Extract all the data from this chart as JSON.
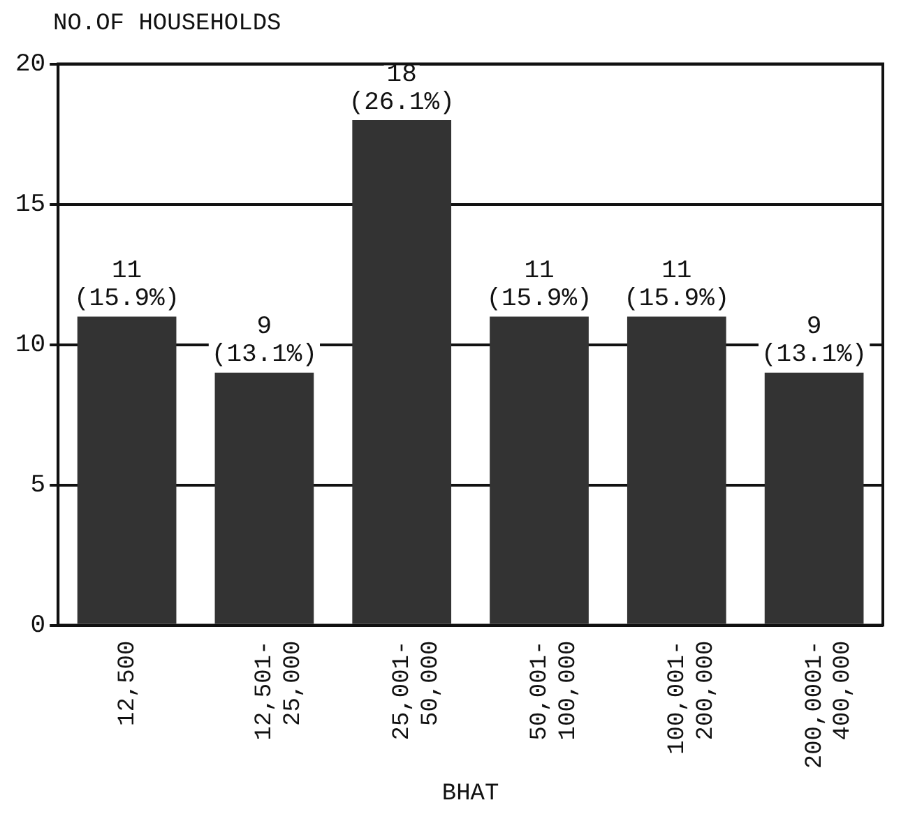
{
  "chart_data": {
    "type": "bar",
    "ylabel": "NO.OF HOUSEHOLDS",
    "xlabel": "BHAT",
    "categories": [
      "12,500",
      "12,501-25,000",
      "25,001-50,000",
      "50,001-100,000",
      "100,001-200,000",
      "200,0001-400,000"
    ],
    "values": [
      11,
      9,
      18,
      11,
      11,
      9
    ],
    "value_labels": [
      "11 (15.9%)",
      "9 (13.1%)",
      "18 (26.1%)",
      "11 (15.9%)",
      "11 (15.9%)",
      "9 (13.1%)"
    ],
    "color": "#333333",
    "ylim": [
      0,
      20
    ],
    "yticks": [
      0,
      5,
      10,
      15,
      20
    ],
    "grid": "y"
  }
}
